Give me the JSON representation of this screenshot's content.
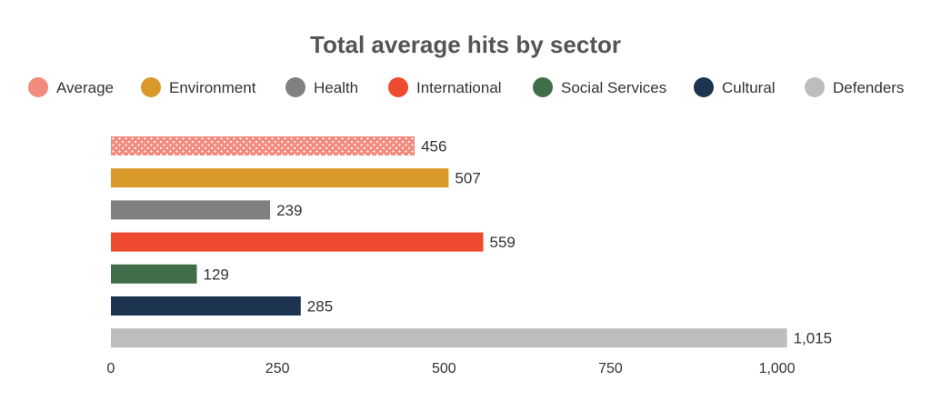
{
  "chart_data": {
    "type": "bar",
    "orientation": "horizontal",
    "title": "Total average hits by sector",
    "xlabel": "",
    "ylabel": "",
    "xlim": [
      0,
      1015
    ],
    "xticks": [
      0,
      250,
      500,
      750,
      1000
    ],
    "xtick_labels": [
      "0",
      "250",
      "500",
      "750",
      "1,000"
    ],
    "grid": false,
    "legend_position": "top",
    "categories": [
      "Average",
      "Environment",
      "Health",
      "International",
      "Social Services",
      "Cultural",
      "Defenders"
    ],
    "values": [
      456,
      507,
      239,
      559,
      129,
      285,
      1015
    ],
    "value_labels": [
      "456",
      "507",
      "239",
      "559",
      "129",
      "285",
      "1,015"
    ],
    "colors": [
      "#f28b7d",
      "#d9982a",
      "#808080",
      "#ee4a30",
      "#416e4a",
      "#1c344f",
      "#bdbdbd"
    ],
    "patterns": [
      "dots",
      "none",
      "none",
      "none",
      "none",
      "none",
      "none"
    ]
  }
}
